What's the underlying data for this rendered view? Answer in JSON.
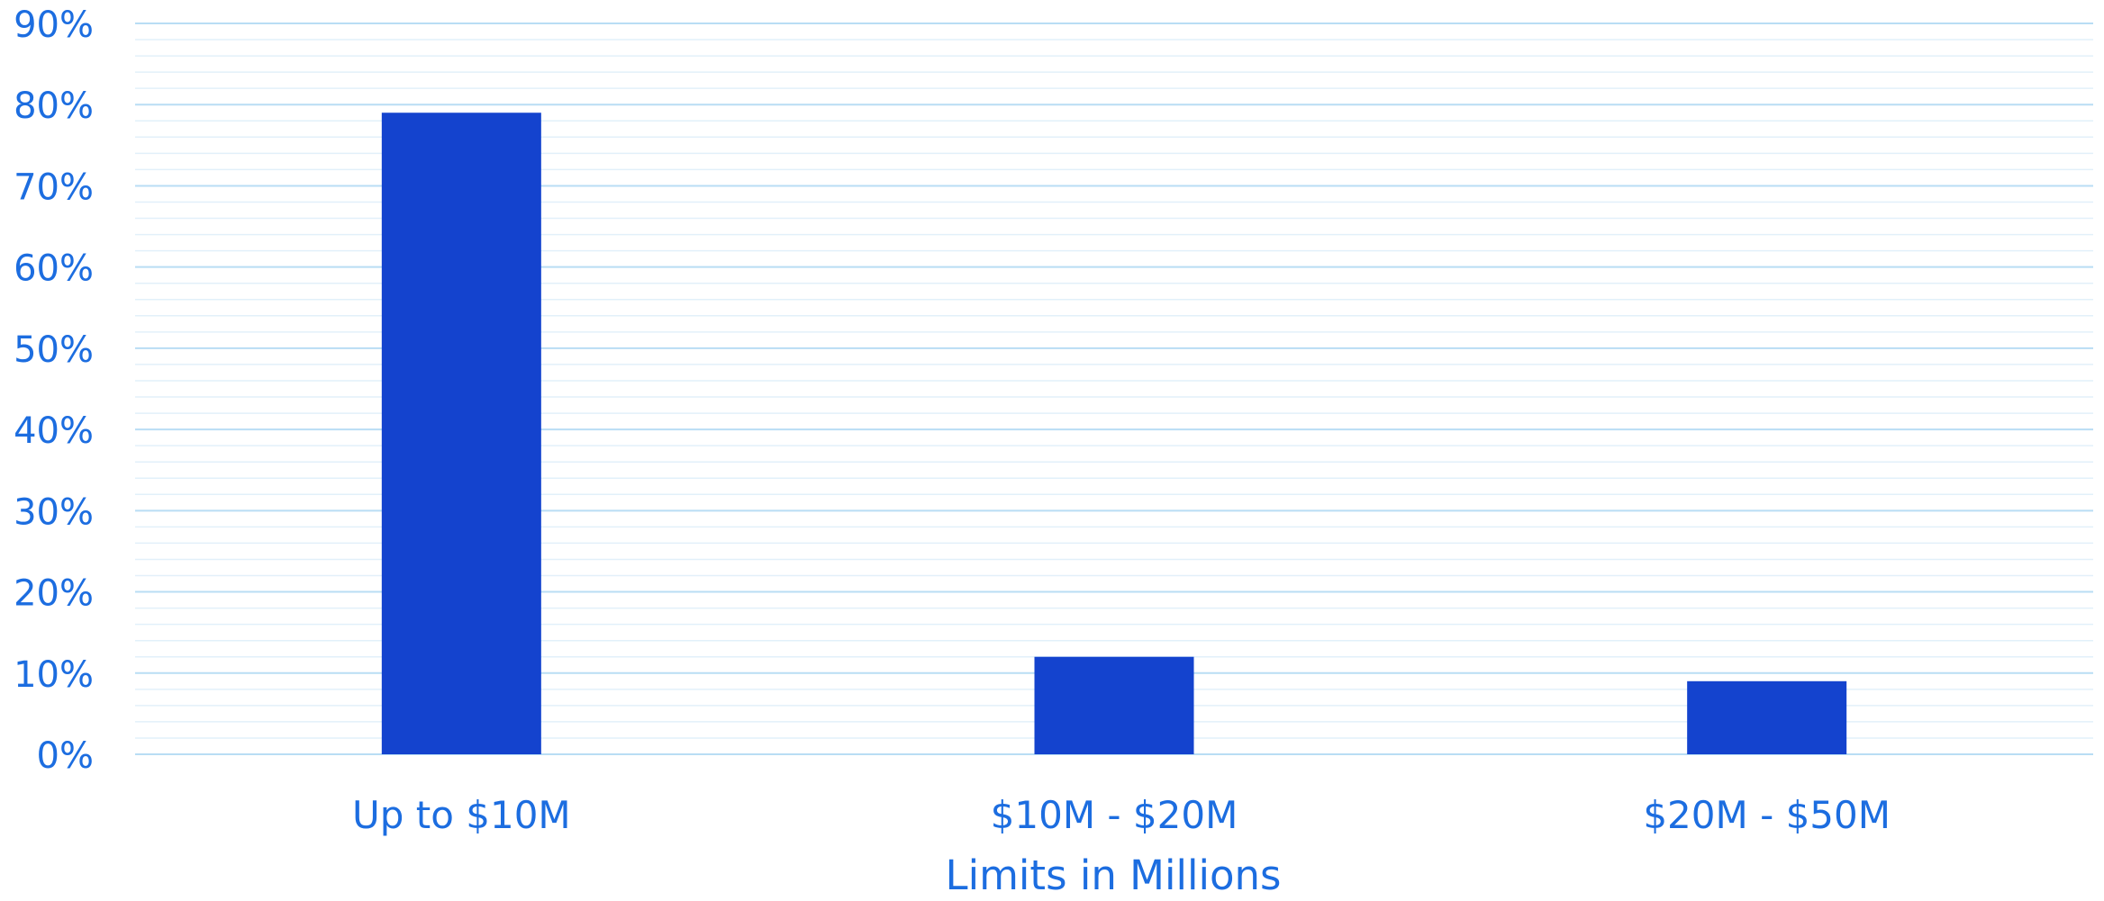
{
  "chart_data": {
    "type": "bar",
    "categories": [
      "Up to $10M",
      "$10M - $20M",
      "$20M - $50M"
    ],
    "values": [
      79,
      12,
      9
    ],
    "y_ticks": [
      "0%",
      "10%",
      "20%",
      "30%",
      "40%",
      "50%",
      "60%",
      "70%",
      "80%",
      "90%"
    ],
    "ylim": [
      0,
      90
    ],
    "xlabel": "Limits in Millions",
    "ylabel": "",
    "title": "",
    "grid": true,
    "legend": "none",
    "colors": {
      "bar": "#1443CE",
      "text": "#1C6DE0",
      "grid_major": "#B9DDF4",
      "grid_minor": "#E2F0FA"
    }
  }
}
